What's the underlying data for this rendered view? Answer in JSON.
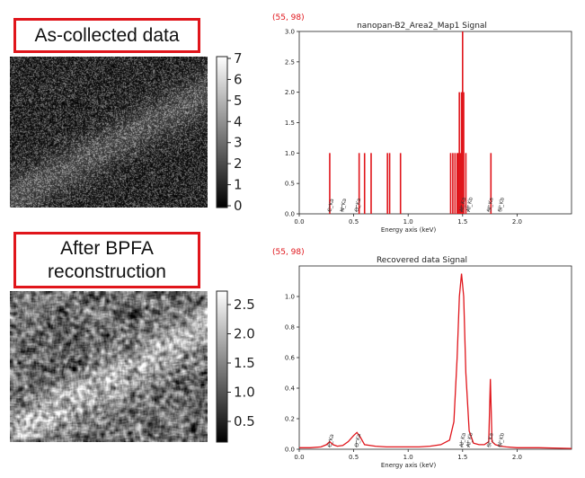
{
  "labels": {
    "top": "As-collected data",
    "bottom_line1": "After BPFA",
    "bottom_line2": "reconstruction"
  },
  "colors": {
    "accent": "#e0151b",
    "signal": "#e0151b"
  },
  "maps": [
    {
      "name": "as-collected-map",
      "colormap": "gray",
      "colorbar_ticks": [
        "7",
        "6",
        "5",
        "4",
        "3",
        "2",
        "1",
        "0"
      ]
    },
    {
      "name": "reconstructed-map",
      "colormap": "gray",
      "colorbar_ticks": [
        "2.5",
        "2.0",
        "1.5",
        "1.0",
        "0.5"
      ]
    }
  ],
  "chart_data": [
    {
      "type": "bar",
      "coord_readout": "(55, 98)",
      "title": "nanopan-B2_Area2_Map1 Signal",
      "xlabel": "Energy axis (keV)",
      "ylabel": "",
      "xlim": [
        0.0,
        2.5
      ],
      "ylim": [
        0,
        3.0
      ],
      "xticks": [
        "0.0",
        "0.5",
        "1.0",
        "1.5",
        "2.0"
      ],
      "yticks": [
        "0.0",
        "0.5",
        "1.0",
        "1.5",
        "2.0",
        "2.5",
        "3.0"
      ],
      "x": [
        0.28,
        0.55,
        0.6,
        0.66,
        0.81,
        0.83,
        0.93,
        1.39,
        1.41,
        1.43,
        1.45,
        1.46,
        1.47,
        1.48,
        1.49,
        1.5,
        1.51,
        1.53,
        1.76
      ],
      "values": [
        1,
        1,
        1,
        1,
        1,
        1,
        1,
        1,
        1,
        1,
        1,
        1,
        2,
        1,
        2,
        3,
        2,
        1,
        1
      ],
      "peak_labels": [
        {
          "x": 0.277,
          "text": "C_Ka"
        },
        {
          "x": 0.392,
          "text": "N_Ka"
        },
        {
          "x": 0.525,
          "text": "O_Ka"
        },
        {
          "x": 1.487,
          "text": "Al_Ka"
        },
        {
          "x": 1.55,
          "text": "Al_Kb"
        },
        {
          "x": 1.74,
          "text": "Si_Ka"
        },
        {
          "x": 1.84,
          "text": "Si_Kb"
        }
      ]
    },
    {
      "type": "line",
      "coord_readout": "(55, 98)",
      "title": "Recovered data Signal",
      "xlabel": "Energy axis (keV)",
      "ylabel": "",
      "xlim": [
        0.0,
        2.5
      ],
      "ylim": [
        0,
        1.2
      ],
      "xticks": [
        "0.0",
        "0.5",
        "1.0",
        "1.5",
        "2.0"
      ],
      "yticks": [
        "0.0",
        "0.2",
        "0.4",
        "0.6",
        "0.8",
        "1.0"
      ],
      "x": [
        0.0,
        0.1,
        0.2,
        0.25,
        0.28,
        0.31,
        0.35,
        0.4,
        0.45,
        0.5,
        0.53,
        0.56,
        0.6,
        0.7,
        0.8,
        0.9,
        1.0,
        1.1,
        1.2,
        1.3,
        1.38,
        1.42,
        1.45,
        1.47,
        1.49,
        1.51,
        1.53,
        1.56,
        1.6,
        1.65,
        1.7,
        1.74,
        1.755,
        1.77,
        1.8,
        1.85,
        1.9,
        2.0,
        2.2,
        2.5
      ],
      "values": [
        0.01,
        0.01,
        0.015,
        0.03,
        0.05,
        0.03,
        0.02,
        0.025,
        0.05,
        0.09,
        0.11,
        0.08,
        0.03,
        0.02,
        0.015,
        0.015,
        0.015,
        0.015,
        0.02,
        0.03,
        0.06,
        0.18,
        0.6,
        1.0,
        1.15,
        1.0,
        0.5,
        0.12,
        0.04,
        0.03,
        0.03,
        0.05,
        0.46,
        0.05,
        0.03,
        0.02,
        0.015,
        0.01,
        0.01,
        0.005
      ],
      "peak_labels": [
        {
          "x": 0.277,
          "text": "C_Ka"
        },
        {
          "x": 0.525,
          "text": "O_Ka"
        },
        {
          "x": 1.487,
          "text": "Al_Ka"
        },
        {
          "x": 1.55,
          "text": "Al_Kb"
        },
        {
          "x": 1.74,
          "text": "Si_Ka"
        },
        {
          "x": 1.84,
          "text": "Si_Kb"
        }
      ]
    }
  ]
}
